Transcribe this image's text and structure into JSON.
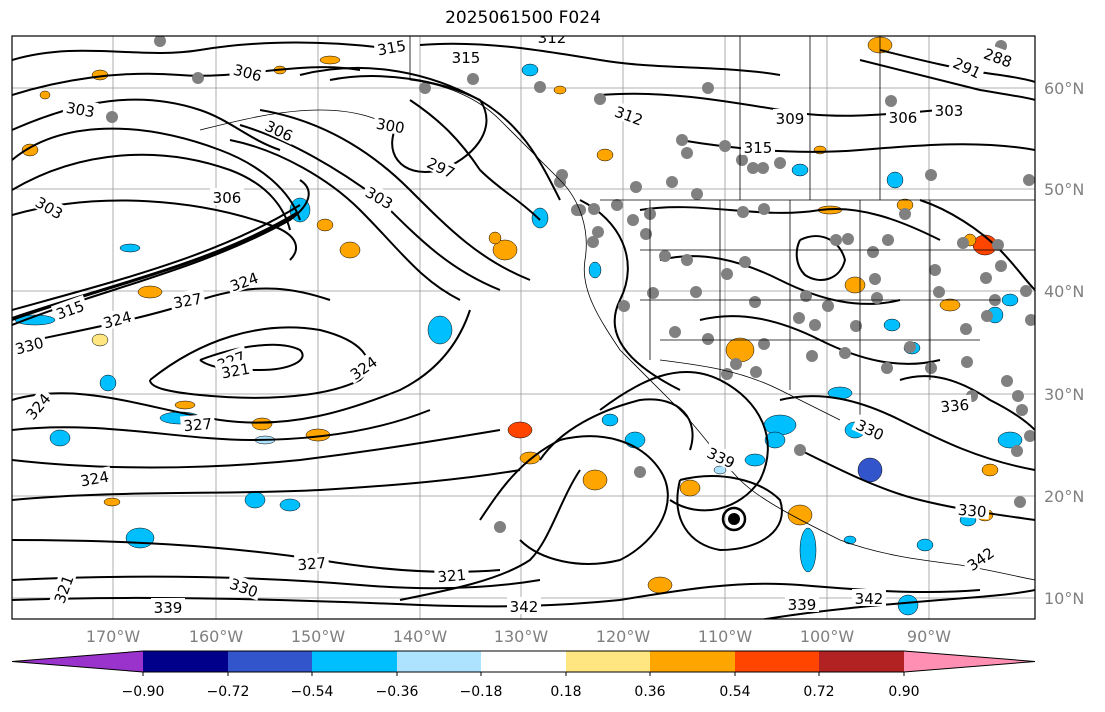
{
  "title": "2025061500 F024",
  "lat_labels": [
    "60°N",
    "50°N",
    "40°N",
    "30°N",
    "20°N",
    "10°N"
  ],
  "lon_labels": [
    "170°W",
    "160°W",
    "150°W",
    "140°W",
    "130°W",
    "120°W",
    "110°W",
    "100°W",
    "90°W"
  ],
  "colorbar": {
    "tick_labels": [
      "−0.90",
      "−0.72",
      "−0.54",
      "−0.36",
      "−0.18",
      "0.18",
      "0.36",
      "0.54",
      "0.72",
      "0.90"
    ],
    "colors": [
      "#9933cc",
      "#00008b",
      "#3355cc",
      "#00bfff",
      "#aee3ff",
      "#ffffff",
      "#ffe680",
      "#ffa500",
      "#ff4500",
      "#b22222",
      "#ff8fb3"
    ]
  },
  "contour_labels": [
    {
      "text": "315"
    },
    {
      "text": "315"
    },
    {
      "text": "312"
    },
    {
      "text": "306"
    },
    {
      "text": "303"
    },
    {
      "text": "306"
    },
    {
      "text": "300"
    },
    {
      "text": "297"
    },
    {
      "text": "303"
    },
    {
      "text": "303"
    },
    {
      "text": "306"
    },
    {
      "text": "312"
    },
    {
      "text": "309"
    },
    {
      "text": "315"
    },
    {
      "text": "306"
    },
    {
      "text": "303"
    },
    {
      "text": "291"
    },
    {
      "text": "288"
    },
    {
      "text": "324"
    },
    {
      "text": "327"
    },
    {
      "text": "324"
    },
    {
      "text": "315"
    },
    {
      "text": "324"
    },
    {
      "text": "330"
    },
    {
      "text": "327"
    },
    {
      "text": "321"
    },
    {
      "text": "324"
    },
    {
      "text": "327"
    },
    {
      "text": "324"
    },
    {
      "text": "327"
    },
    {
      "text": "330"
    },
    {
      "text": "321"
    },
    {
      "text": "339"
    },
    {
      "text": "342"
    },
    {
      "text": "339"
    },
    {
      "text": "342"
    },
    {
      "text": "336"
    },
    {
      "text": "330"
    },
    {
      "text": "342"
    },
    {
      "text": "330"
    },
    {
      "text": "339"
    },
    {
      "text": "321"
    }
  ],
  "layers": {
    "fill_colors": {
      "orange": "#ffa500",
      "yellow": "#ffe680",
      "red": "#ff4500",
      "cyan": "#00bfff",
      "lightblue": "#aee3ff",
      "blue": "#3355cc"
    }
  }
}
